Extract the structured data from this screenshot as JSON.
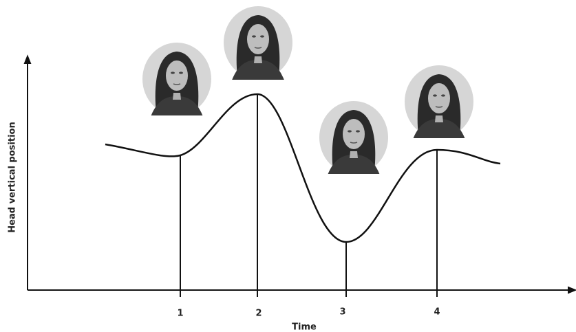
{
  "y_axis_label": "Head vertical position",
  "x_axis_label": "Time",
  "time_points": [
    "1",
    "2",
    "3",
    "4"
  ]
}
